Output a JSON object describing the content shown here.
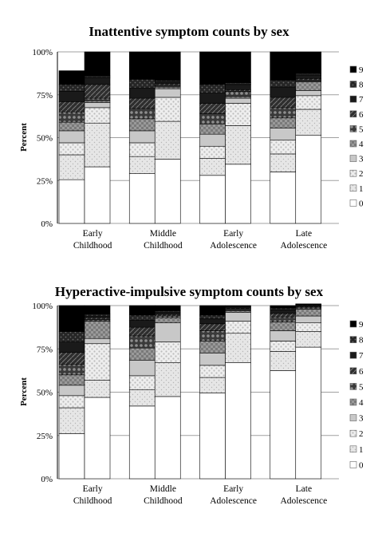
{
  "chart_data": [
    {
      "type": "bar",
      "stacked": true,
      "title": "Inattentive symptom counts by sex",
      "ylabel": "Percent",
      "ylim": [
        0,
        100
      ],
      "yticks": [
        "0%",
        "25%",
        "50%",
        "75%",
        "100%"
      ],
      "categories": [
        [
          "Early",
          "Childhood"
        ],
        [
          "Middle",
          "Childhood"
        ],
        [
          "Early",
          "Adolescence"
        ],
        [
          "Late",
          "Adolescence"
        ]
      ],
      "legend": [
        "9",
        "8",
        "7",
        "6",
        "5",
        "4",
        "3",
        "2",
        "1",
        "0"
      ],
      "legend_position": "right",
      "grid": true,
      "stack_order": [
        "0",
        "1",
        "2",
        "3",
        "4",
        "5",
        "6",
        "7",
        "8",
        "9"
      ],
      "bars": [
        {
          "category": 0,
          "bar": 0,
          "values": [
            25.5,
            14.5,
            7,
            7,
            5,
            6,
            6,
            6,
            4,
            8
          ]
        },
        {
          "category": 0,
          "bar": 1,
          "values": [
            33,
            25.5,
            9,
            3,
            1,
            1.5,
            8,
            4,
            1,
            14
          ]
        },
        {
          "category": 1,
          "bar": 0,
          "values": [
            29,
            10,
            8,
            7,
            7,
            6,
            6,
            6,
            5,
            16
          ]
        },
        {
          "category": 1,
          "bar": 1,
          "values": [
            37.5,
            22,
            14,
            5,
            1,
            1,
            1,
            1,
            1,
            16.5
          ]
        },
        {
          "category": 2,
          "bar": 0,
          "values": [
            28,
            10,
            7,
            7,
            6,
            6,
            6,
            6,
            5,
            19
          ]
        },
        {
          "category": 2,
          "bar": 1,
          "values": [
            34.5,
            22.5,
            13,
            3,
            1,
            3,
            1,
            3,
            1,
            18
          ]
        },
        {
          "category": 3,
          "bar": 0,
          "values": [
            30,
            10.5,
            8,
            7,
            6,
            6,
            6,
            6,
            4,
            16.5
          ]
        },
        {
          "category": 3,
          "bar": 1,
          "values": [
            51.5,
            15,
            8,
            3,
            5,
            1,
            1,
            2,
            1,
            12.5
          ]
        }
      ],
      "fills": {
        "0": "#ffffff",
        "1": "#e6e6e6",
        "2": "#eeeeee",
        "3": "#c8c8c8",
        "4": "#9a9a9a",
        "5": "#3a3a3a",
        "6": "#2e2e2e",
        "7": "#1a1a1a",
        "8": "#262626",
        "9": "#000000"
      }
    },
    {
      "type": "bar",
      "stacked": true,
      "title": "Hyperactive-impulsive symptom counts by sex",
      "ylabel": "Percent",
      "ylim": [
        0,
        100
      ],
      "yticks": [
        "0%",
        "25%",
        "50%",
        "75%",
        "100%"
      ],
      "categories": [
        [
          "Early",
          "Childhood"
        ],
        [
          "Middle",
          "Childhood"
        ],
        [
          "Early",
          "Adolescence"
        ],
        [
          "Late",
          "Adolescence"
        ]
      ],
      "legend": [
        "9",
        "8",
        "7",
        "6",
        "5",
        "4",
        "3",
        "2",
        "1",
        "0"
      ],
      "legend_position": "right",
      "grid": true,
      "stack_order": [
        "0",
        "1",
        "2",
        "3",
        "4",
        "5",
        "6",
        "7",
        "8",
        "9"
      ],
      "bars": [
        {
          "category": 0,
          "bar": 0,
          "values": [
            26,
            15,
            7,
            6,
            6,
            6,
            7,
            6,
            6,
            15
          ]
        },
        {
          "category": 0,
          "bar": 1,
          "values": [
            47,
            10,
            21,
            3,
            10,
            1,
            1,
            1,
            1,
            5
          ]
        },
        {
          "category": 1,
          "bar": 0,
          "values": [
            42,
            9.5,
            8,
            9,
            7,
            7,
            5,
            4,
            3,
            5.5
          ]
        },
        {
          "category": 1,
          "bar": 1,
          "values": [
            47.5,
            19.5,
            12,
            11,
            3,
            1,
            1,
            1,
            1,
            3
          ]
        },
        {
          "category": 2,
          "bar": 0,
          "values": [
            49.5,
            9,
            7,
            7,
            7,
            6,
            4,
            3,
            2,
            5.5
          ]
        },
        {
          "category": 2,
          "bar": 1,
          "values": [
            67,
            17,
            7,
            5,
            1,
            1,
            0.5,
            0.5,
            0.5,
            0.5
          ]
        },
        {
          "category": 3,
          "bar": 0,
          "values": [
            62.5,
            11,
            6,
            6,
            5,
            3,
            2,
            2,
            1,
            1.5
          ]
        },
        {
          "category": 3,
          "bar": 1,
          "values": [
            76,
            9,
            5,
            4,
            4,
            1,
            0.5,
            0.5,
            0.5,
            0.5
          ]
        }
      ],
      "fills": {
        "0": "#ffffff",
        "1": "#e6e6e6",
        "2": "#eeeeee",
        "3": "#c8c8c8",
        "4": "#9a9a9a",
        "5": "#3a3a3a",
        "6": "#2e2e2e",
        "7": "#1a1a1a",
        "8": "#262626",
        "9": "#000000"
      }
    }
  ]
}
